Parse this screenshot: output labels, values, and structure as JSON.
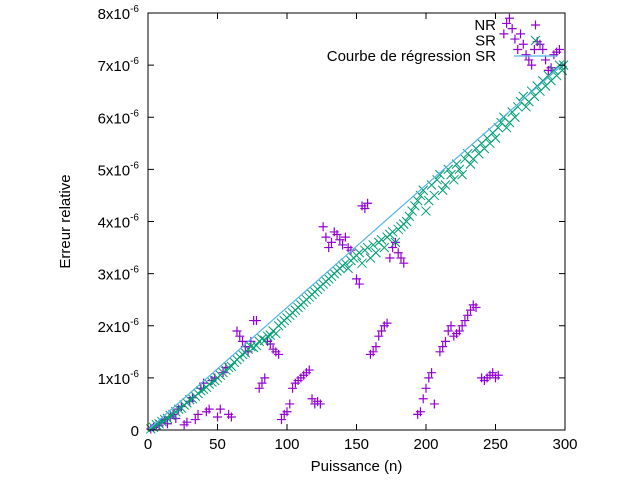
{
  "chart_data": {
    "type": "scatter",
    "xlabel": "Puissance (n)",
    "ylabel": "Erreur relative",
    "xlim": [
      0,
      300
    ],
    "ylim": [
      0,
      8e-06
    ],
    "grid": false,
    "legend_position": "top-right",
    "x_ticks": [
      {
        "value": 0,
        "label": "0"
      },
      {
        "value": 50,
        "label": "50"
      },
      {
        "value": 100,
        "label": "100"
      },
      {
        "value": 150,
        "label": "150"
      },
      {
        "value": 200,
        "label": "200"
      },
      {
        "value": 250,
        "label": "250"
      },
      {
        "value": 300,
        "label": "300"
      }
    ],
    "y_ticks": [
      {
        "value": 0,
        "mantissa": "0",
        "exponent": ""
      },
      {
        "value": 1e-06,
        "mantissa": "1x10",
        "exponent": "-6"
      },
      {
        "value": 2e-06,
        "mantissa": "2x10",
        "exponent": "-6"
      },
      {
        "value": 3e-06,
        "mantissa": "3x10",
        "exponent": "-6"
      },
      {
        "value": 4e-06,
        "mantissa": "4x10",
        "exponent": "-6"
      },
      {
        "value": 5e-06,
        "mantissa": "5x10",
        "exponent": "-6"
      },
      {
        "value": 6e-06,
        "mantissa": "6x10",
        "exponent": "-6"
      },
      {
        "value": 7e-06,
        "mantissa": "7x10",
        "exponent": "-6"
      },
      {
        "value": 8e-06,
        "mantissa": "8x10",
        "exponent": "-6"
      }
    ],
    "series": [
      {
        "name": "NR",
        "marker": "plus",
        "color": "#9400d3",
        "points": [
          [
            2,
            2e-08
          ],
          [
            4,
            5e-08
          ],
          [
            6,
            1e-07
          ],
          [
            8,
            8e-08
          ],
          [
            10,
            1.5e-07
          ],
          [
            12,
            2e-07
          ],
          [
            14,
            1.2e-07
          ],
          [
            16,
            2.5e-07
          ],
          [
            18,
            3e-07
          ],
          [
            20,
            2.2e-07
          ],
          [
            22,
            4e-07
          ],
          [
            24,
            4.5e-07
          ],
          [
            26,
            1e-07
          ],
          [
            28,
            1.5e-07
          ],
          [
            30,
            5.5e-07
          ],
          [
            32,
            6.2e-07
          ],
          [
            34,
            2e-07
          ],
          [
            36,
            3e-07
          ],
          [
            38,
            8e-07
          ],
          [
            40,
            9e-07
          ],
          [
            42,
            3.5e-07
          ],
          [
            44,
            4e-07
          ],
          [
            46,
            9.5e-07
          ],
          [
            48,
            1e-06
          ],
          [
            50,
            2.5e-07
          ],
          [
            52,
            4e-07
          ],
          [
            54,
            1.1e-06
          ],
          [
            56,
            1.2e-06
          ],
          [
            58,
            3e-07
          ],
          [
            60,
            2.5e-07
          ],
          [
            64,
            1.9e-06
          ],
          [
            66,
            1.8e-06
          ],
          [
            68,
            1.7e-06
          ],
          [
            70,
            1.6e-06
          ],
          [
            72,
            1.5e-06
          ],
          [
            74,
            1.7e-06
          ],
          [
            76,
            2.1e-06
          ],
          [
            78,
            2.1e-06
          ],
          [
            80,
            8e-07
          ],
          [
            82,
            9e-07
          ],
          [
            84,
            1e-06
          ],
          [
            86,
            1.7e-06
          ],
          [
            88,
            1.65e-06
          ],
          [
            90,
            1.55e-06
          ],
          [
            92,
            1.5e-06
          ],
          [
            94,
            1.45e-06
          ],
          [
            96,
            2e-07
          ],
          [
            98,
            3e-07
          ],
          [
            100,
            3.5e-07
          ],
          [
            102,
            5e-07
          ],
          [
            104,
            8e-07
          ],
          [
            106,
            9e-07
          ],
          [
            108,
            9.5e-07
          ],
          [
            110,
            1e-06
          ],
          [
            112,
            1.05e-06
          ],
          [
            114,
            1.1e-06
          ],
          [
            116,
            1.15e-06
          ],
          [
            118,
            6e-07
          ],
          [
            120,
            5e-07
          ],
          [
            122,
            5.5e-07
          ],
          [
            124,
            5e-07
          ],
          [
            126,
            3.9e-06
          ],
          [
            128,
            3.7e-06
          ],
          [
            130,
            3.5e-06
          ],
          [
            132,
            3.6e-06
          ],
          [
            134,
            3.8e-06
          ],
          [
            136,
            3.75e-06
          ],
          [
            138,
            3.65e-06
          ],
          [
            140,
            3.55e-06
          ],
          [
            142,
            3.7e-06
          ],
          [
            144,
            3.5e-06
          ],
          [
            146,
            3.45e-06
          ],
          [
            150,
            2.9e-06
          ],
          [
            152,
            2.8e-06
          ],
          [
            154,
            4.3e-06
          ],
          [
            156,
            4.25e-06
          ],
          [
            158,
            4.35e-06
          ],
          [
            160,
            1.45e-06
          ],
          [
            162,
            1.5e-06
          ],
          [
            164,
            1.6e-06
          ],
          [
            166,
            1.8e-06
          ],
          [
            168,
            1.9e-06
          ],
          [
            170,
            2e-06
          ],
          [
            172,
            2.05e-06
          ],
          [
            174,
            3.3e-06
          ],
          [
            176,
            3.5e-06
          ],
          [
            178,
            3.6e-06
          ],
          [
            180,
            3.4e-06
          ],
          [
            182,
            3.3e-06
          ],
          [
            184,
            3.2e-06
          ],
          [
            194,
            3e-07
          ],
          [
            196,
            3.5e-07
          ],
          [
            198,
            6e-07
          ],
          [
            200,
            8e-07
          ],
          [
            202,
            1e-06
          ],
          [
            204,
            1.1e-06
          ],
          [
            206,
            5e-07
          ],
          [
            210,
            1.5e-06
          ],
          [
            212,
            1.6e-06
          ],
          [
            214,
            1.7e-06
          ],
          [
            216,
            1.9e-06
          ],
          [
            218,
            2e-06
          ],
          [
            220,
            1.8e-06
          ],
          [
            222,
            1.85e-06
          ],
          [
            224,
            1.9e-06
          ],
          [
            226,
            2e-06
          ],
          [
            228,
            2.1e-06
          ],
          [
            230,
            2.2e-06
          ],
          [
            232,
            2.3e-06
          ],
          [
            234,
            2.4e-06
          ],
          [
            236,
            2.35e-06
          ],
          [
            240,
            1e-06
          ],
          [
            242,
            9.5e-07
          ],
          [
            244,
            1e-06
          ],
          [
            246,
            1.05e-06
          ],
          [
            248,
            1.1e-06
          ],
          [
            250,
            1e-06
          ],
          [
            252,
            1.05e-06
          ],
          [
            256,
            7.6e-06
          ],
          [
            258,
            7.8e-06
          ],
          [
            260,
            7.9e-06
          ],
          [
            262,
            7.7e-06
          ],
          [
            264,
            7.5e-06
          ],
          [
            266,
            7.3e-06
          ],
          [
            268,
            7.6e-06
          ],
          [
            270,
            7.4e-06
          ],
          [
            272,
            7.2e-06
          ],
          [
            274,
            7.1e-06
          ],
          [
            276,
            7e-06
          ],
          [
            278,
            7.3e-06
          ],
          [
            280,
            7.45e-06
          ],
          [
            282,
            7.4e-06
          ],
          [
            284,
            7.3e-06
          ],
          [
            286,
            7.1e-06
          ],
          [
            288,
            6.9e-06
          ],
          [
            290,
            6.95e-06
          ],
          [
            292,
            7.2e-06
          ],
          [
            294,
            7.25e-06
          ],
          [
            296,
            7.3e-06
          ]
        ]
      },
      {
        "name": "SR",
        "marker": "cross",
        "color": "#009e73",
        "points": [
          [
            2,
            2e-08
          ],
          [
            4,
            5e-08
          ],
          [
            6,
            1e-07
          ],
          [
            8,
            1.2e-07
          ],
          [
            10,
            1.6e-07
          ],
          [
            12,
            2e-07
          ],
          [
            14,
            2.2e-07
          ],
          [
            16,
            2.8e-07
          ],
          [
            18,
            3e-07
          ],
          [
            20,
            3.5e-07
          ],
          [
            22,
            4e-07
          ],
          [
            24,
            4.2e-07
          ],
          [
            26,
            4.8e-07
          ],
          [
            28,
            5.2e-07
          ],
          [
            30,
            5.8e-07
          ],
          [
            32,
            6e-07
          ],
          [
            34,
            6.5e-07
          ],
          [
            36,
            7e-07
          ],
          [
            38,
            7.5e-07
          ],
          [
            40,
            7.8e-07
          ],
          [
            42,
            8.2e-07
          ],
          [
            44,
            8.8e-07
          ],
          [
            46,
            9.2e-07
          ],
          [
            48,
            9.5e-07
          ],
          [
            50,
            1e-06
          ],
          [
            52,
            1.05e-06
          ],
          [
            54,
            1.1e-06
          ],
          [
            56,
            1.15e-06
          ],
          [
            58,
            1.2e-06
          ],
          [
            60,
            1.22e-06
          ],
          [
            62,
            1.3e-06
          ],
          [
            64,
            1.35e-06
          ],
          [
            66,
            1.4e-06
          ],
          [
            68,
            1.45e-06
          ],
          [
            70,
            1.48e-06
          ],
          [
            72,
            1.55e-06
          ],
          [
            74,
            1.6e-06
          ],
          [
            76,
            1.58e-06
          ],
          [
            78,
            1.62e-06
          ],
          [
            80,
            1.7e-06
          ],
          [
            82,
            1.75e-06
          ],
          [
            84,
            1.72e-06
          ],
          [
            86,
            1.8e-06
          ],
          [
            88,
            1.82e-06
          ],
          [
            90,
            1.9e-06
          ],
          [
            92,
            1.85e-06
          ],
          [
            94,
            2e-06
          ],
          [
            96,
            2.05e-06
          ],
          [
            98,
            2.1e-06
          ],
          [
            100,
            2.15e-06
          ],
          [
            102,
            2.2e-06
          ],
          [
            104,
            2.25e-06
          ],
          [
            106,
            2.3e-06
          ],
          [
            108,
            2.35e-06
          ],
          [
            110,
            2.4e-06
          ],
          [
            112,
            2.45e-06
          ],
          [
            114,
            2.5e-06
          ],
          [
            116,
            2.55e-06
          ],
          [
            118,
            2.6e-06
          ],
          [
            120,
            2.65e-06
          ],
          [
            122,
            2.7e-06
          ],
          [
            124,
            2.75e-06
          ],
          [
            126,
            2.8e-06
          ],
          [
            128,
            2.85e-06
          ],
          [
            130,
            2.9e-06
          ],
          [
            132,
            2.95e-06
          ],
          [
            134,
            3e-06
          ],
          [
            136,
            3.05e-06
          ],
          [
            138,
            3.1e-06
          ],
          [
            140,
            3.15e-06
          ],
          [
            142,
            3.2e-06
          ],
          [
            144,
            3.1e-06
          ],
          [
            146,
            3.25e-06
          ],
          [
            148,
            3.3e-06
          ],
          [
            150,
            3.35e-06
          ],
          [
            152,
            3.4e-06
          ],
          [
            154,
            3.2e-06
          ],
          [
            156,
            3.45e-06
          ],
          [
            158,
            3.5e-06
          ],
          [
            160,
            3.3e-06
          ],
          [
            162,
            3.55e-06
          ],
          [
            164,
            3.4e-06
          ],
          [
            166,
            3.6e-06
          ],
          [
            168,
            3.65e-06
          ],
          [
            170,
            3.5e-06
          ],
          [
            172,
            3.7e-06
          ],
          [
            174,
            3.75e-06
          ],
          [
            176,
            3.8e-06
          ],
          [
            178,
            3.6e-06
          ],
          [
            180,
            3.85e-06
          ],
          [
            182,
            3.9e-06
          ],
          [
            184,
            3.95e-06
          ],
          [
            186,
            4e-06
          ],
          [
            188,
            4.1e-06
          ],
          [
            190,
            4.2e-06
          ],
          [
            192,
            4.3e-06
          ],
          [
            194,
            4.4e-06
          ],
          [
            196,
            4.5e-06
          ],
          [
            198,
            4.6e-06
          ],
          [
            200,
            4.2e-06
          ],
          [
            202,
            4.4e-06
          ],
          [
            204,
            4.7e-06
          ],
          [
            206,
            4.5e-06
          ],
          [
            208,
            4.8e-06
          ],
          [
            210,
            4.9e-06
          ],
          [
            212,
            4.6e-06
          ],
          [
            214,
            4.7e-06
          ],
          [
            216,
            5e-06
          ],
          [
            218,
            4.9e-06
          ],
          [
            220,
            4.8e-06
          ],
          [
            222,
            5.1e-06
          ],
          [
            224,
            5e-06
          ],
          [
            226,
            4.9e-06
          ],
          [
            228,
            5.2e-06
          ],
          [
            230,
            5.3e-06
          ],
          [
            232,
            5.1e-06
          ],
          [
            234,
            5.2e-06
          ],
          [
            236,
            5.4e-06
          ],
          [
            238,
            5.3e-06
          ],
          [
            240,
            5.5e-06
          ],
          [
            242,
            5.4e-06
          ],
          [
            244,
            5.6e-06
          ],
          [
            246,
            5.5e-06
          ],
          [
            248,
            5.7e-06
          ],
          [
            250,
            5.6e-06
          ],
          [
            252,
            5.8e-06
          ],
          [
            254,
            5.9e-06
          ],
          [
            256,
            6e-06
          ],
          [
            258,
            5.8e-06
          ],
          [
            260,
            5.9e-06
          ],
          [
            262,
            6.1e-06
          ],
          [
            264,
            6e-06
          ],
          [
            266,
            6.2e-06
          ],
          [
            268,
            6.3e-06
          ],
          [
            270,
            6.4e-06
          ],
          [
            272,
            6.2e-06
          ],
          [
            274,
            6.3e-06
          ],
          [
            276,
            6.5e-06
          ],
          [
            278,
            6.4e-06
          ],
          [
            280,
            6.6e-06
          ],
          [
            282,
            6.5e-06
          ],
          [
            284,
            6.7e-06
          ],
          [
            286,
            6.6e-06
          ],
          [
            288,
            6.8e-06
          ],
          [
            290,
            6.7e-06
          ],
          [
            292,
            6.9e-06
          ],
          [
            294,
            6.8e-06
          ],
          [
            296,
            7e-06
          ],
          [
            298,
            6.9e-06
          ],
          [
            299,
            7e-06
          ]
        ]
      },
      {
        "name": "Courbe de régression SR",
        "marker": "line",
        "color": "#56b4e9",
        "points": [
          [
            0,
            0
          ],
          [
            300,
            7.05e-06
          ]
        ]
      }
    ]
  }
}
